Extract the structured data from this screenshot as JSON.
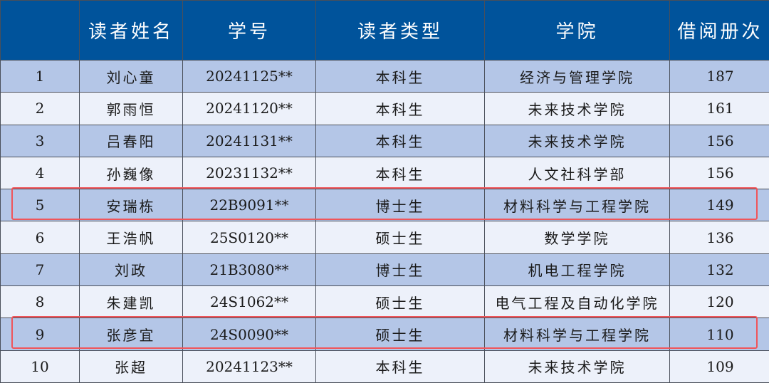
{
  "table": {
    "headers": [
      "",
      "读者姓名",
      "学号",
      "读者类型",
      "学院",
      "借阅册次"
    ],
    "rows": [
      [
        "1",
        "刘心童",
        "20241125**",
        "本科生",
        "经济与管理学院",
        "187"
      ],
      [
        "2",
        "郭雨恒",
        "20241120**",
        "本科生",
        "未来技术学院",
        "161"
      ],
      [
        "3",
        "吕春阳",
        "20241131**",
        "本科生",
        "未来技术学院",
        "156"
      ],
      [
        "4",
        "孙巍像",
        "20231132**",
        "本科生",
        "人文社科学部",
        "156"
      ],
      [
        "5",
        "安瑞栋",
        "22B9091**",
        "博士生",
        "材料科学与工程学院",
        "149"
      ],
      [
        "6",
        "王浩帆",
        "25S0120**",
        "硕士生",
        "数学学院",
        "136"
      ],
      [
        "7",
        "刘政",
        "21B3080**",
        "博士生",
        "机电工程学院",
        "132"
      ],
      [
        "8",
        "朱建凯",
        "24S1062**",
        "硕士生",
        "电气工程及自动化学院",
        "120"
      ],
      [
        "9",
        "张彦宜",
        "24S0090**",
        "硕士生",
        "材料科学与工程学院",
        "110"
      ],
      [
        "10",
        "张超",
        "20241123**",
        "本科生",
        "未来技术学院",
        "109"
      ]
    ],
    "highlighted_rows": [
      5,
      9
    ]
  },
  "colors": {
    "header": "#00539b",
    "row_odd": "#b4c6e7",
    "row_even": "#edf1fa",
    "highlight": "#f0555a"
  }
}
